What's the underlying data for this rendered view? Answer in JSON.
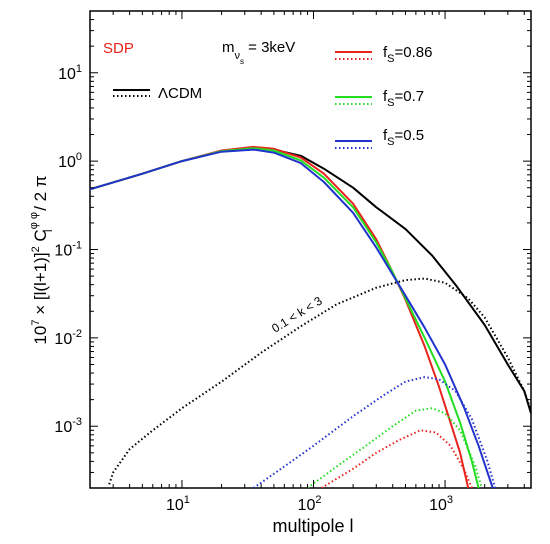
{
  "chart_data": {
    "type": "line",
    "xlabel": "multipole l",
    "ylabel": {
      "prefix": "10",
      "prefix_exp": "7",
      "main": " × [l(l+1)]",
      "sq": "2",
      "c": " C",
      "c_sup": "φ φ",
      "c_sub": "l",
      "suffix": " / 2 π"
    },
    "x_scale": "log",
    "y_scale": "log",
    "xlim": [
      2,
      4500
    ],
    "ylim": [
      0.0002,
      50
    ],
    "x_ticks": [
      {
        "value": 10,
        "base": "10",
        "exp": "1"
      },
      {
        "value": 100,
        "base": "10",
        "exp": "2"
      },
      {
        "value": 1000,
        "base": "10",
        "exp": "3"
      }
    ],
    "y_ticks": [
      {
        "value": 0.001,
        "base": "10",
        "exp": "-3"
      },
      {
        "value": 0.01,
        "base": "10",
        "exp": "-2"
      },
      {
        "value": 0.1,
        "base": "10",
        "exp": "-1"
      },
      {
        "value": 1,
        "base": "10",
        "exp": "0"
      },
      {
        "value": 10,
        "base": "10",
        "exp": "1"
      }
    ],
    "grid": false,
    "annotations": {
      "model": "SDP",
      "mass_m": "m",
      "mass_nu": "ν",
      "mass_s": "s",
      "mass_value": " = 3keV",
      "k_range": "0.1 < k < 3"
    },
    "legend_placement": "top",
    "series": [
      {
        "name": "ΛCDM",
        "label_parts": {
          "main": "ΛCDM"
        },
        "color": "#000000",
        "dash": "solid",
        "points": [
          [
            2,
            0.48
          ],
          [
            5,
            0.72
          ],
          [
            10,
            1.0
          ],
          [
            20,
            1.3
          ],
          [
            35,
            1.42
          ],
          [
            50,
            1.35
          ],
          [
            80,
            1.15
          ],
          [
            120,
            0.82
          ],
          [
            200,
            0.5
          ],
          [
            300,
            0.3
          ],
          [
            500,
            0.17
          ],
          [
            800,
            0.085
          ],
          [
            1200,
            0.04
          ],
          [
            2000,
            0.014
          ],
          [
            3000,
            0.005
          ],
          [
            4000,
            0.0025
          ],
          [
            4500,
            0.0014
          ]
        ]
      },
      {
        "name": "ΛCDM 0.1<k<3",
        "color": "#000000",
        "dash": "dotted",
        "points": [
          [
            2.8,
            0.00022
          ],
          [
            3,
            0.0003
          ],
          [
            4,
            0.00055
          ],
          [
            6,
            0.0009
          ],
          [
            10,
            0.0016
          ],
          [
            20,
            0.0032
          ],
          [
            40,
            0.0068
          ],
          [
            80,
            0.0135
          ],
          [
            150,
            0.024
          ],
          [
            300,
            0.037
          ],
          [
            500,
            0.045
          ],
          [
            700,
            0.047
          ],
          [
            1000,
            0.042
          ],
          [
            1500,
            0.028
          ],
          [
            2000,
            0.017
          ],
          [
            3000,
            0.006
          ],
          [
            4000,
            0.0025
          ],
          [
            4500,
            0.0015
          ]
        ]
      },
      {
        "name": "f_S=0.86",
        "label_parts": {
          "f": "f",
          "sub": "S",
          "val": "=0.86"
        },
        "color": "#e8231c",
        "dash": "solid",
        "points": [
          [
            2,
            0.48
          ],
          [
            5,
            0.72
          ],
          [
            10,
            1.0
          ],
          [
            20,
            1.32
          ],
          [
            35,
            1.45
          ],
          [
            50,
            1.38
          ],
          [
            80,
            1.1
          ],
          [
            120,
            0.72
          ],
          [
            200,
            0.33
          ],
          [
            300,
            0.13
          ],
          [
            400,
            0.055
          ],
          [
            500,
            0.027
          ],
          [
            700,
            0.008
          ],
          [
            900,
            0.0028
          ],
          [
            1100,
            0.0011
          ],
          [
            1300,
            0.0005
          ],
          [
            1500,
            0.0002
          ]
        ]
      },
      {
        "name": "f_S=0.86 0.1<k<3",
        "color": "#e8231c",
        "dash": "dotted",
        "points": [
          [
            115,
            0.0002
          ],
          [
            200,
            0.00033
          ],
          [
            300,
            0.0005
          ],
          [
            450,
            0.0007
          ],
          [
            650,
            0.0009
          ],
          [
            850,
            0.00085
          ],
          [
            1100,
            0.0006
          ],
          [
            1400,
            0.00032
          ],
          [
            1600,
            0.0002
          ]
        ]
      },
      {
        "name": "f_S=0.7",
        "label_parts": {
          "f": "f",
          "sub": "S",
          "val": "=0.7"
        },
        "color": "#22dd22",
        "dash": "solid",
        "points": [
          [
            2,
            0.48
          ],
          [
            5,
            0.72
          ],
          [
            10,
            1.0
          ],
          [
            20,
            1.3
          ],
          [
            35,
            1.4
          ],
          [
            50,
            1.32
          ],
          [
            80,
            1.02
          ],
          [
            120,
            0.65
          ],
          [
            200,
            0.3
          ],
          [
            300,
            0.12
          ],
          [
            400,
            0.055
          ],
          [
            500,
            0.028
          ],
          [
            700,
            0.01
          ],
          [
            1000,
            0.0032
          ],
          [
            1300,
            0.0011
          ],
          [
            1600,
            0.0004
          ],
          [
            1800,
            0.0002
          ]
        ]
      },
      {
        "name": "f_S=0.7 0.1<k<3",
        "color": "#22dd22",
        "dash": "dotted",
        "points": [
          [
            90,
            0.0002
          ],
          [
            150,
            0.00035
          ],
          [
            250,
            0.0006
          ],
          [
            400,
            0.001
          ],
          [
            600,
            0.0015
          ],
          [
            800,
            0.0016
          ],
          [
            1000,
            0.0014
          ],
          [
            1300,
            0.0009
          ],
          [
            1700,
            0.00035
          ],
          [
            1900,
            0.0002
          ]
        ]
      },
      {
        "name": "f_S=0.5",
        "label_parts": {
          "f": "f",
          "sub": "S",
          "val": "=0.5"
        },
        "color": "#2233cc",
        "dash": "solid",
        "points": [
          [
            2,
            0.48
          ],
          [
            5,
            0.72
          ],
          [
            10,
            1.0
          ],
          [
            20,
            1.28
          ],
          [
            35,
            1.35
          ],
          [
            50,
            1.25
          ],
          [
            80,
            0.95
          ],
          [
            120,
            0.58
          ],
          [
            200,
            0.26
          ],
          [
            300,
            0.105
          ],
          [
            400,
            0.052
          ],
          [
            500,
            0.03
          ],
          [
            700,
            0.013
          ],
          [
            1000,
            0.005
          ],
          [
            1400,
            0.0016
          ],
          [
            1800,
            0.0006
          ],
          [
            2300,
            0.0002
          ]
        ]
      },
      {
        "name": "f_S=0.5 0.1<k<3",
        "color": "#2233cc",
        "dash": "dotted",
        "points": [
          [
            35,
            0.0002
          ],
          [
            60,
            0.00035
          ],
          [
            100,
            0.0006
          ],
          [
            200,
            0.0013
          ],
          [
            350,
            0.0023
          ],
          [
            500,
            0.0032
          ],
          [
            700,
            0.0036
          ],
          [
            900,
            0.0034
          ],
          [
            1200,
            0.0025
          ],
          [
            1600,
            0.0012
          ],
          [
            2100,
            0.0004
          ],
          [
            2400,
            0.0002
          ]
        ]
      }
    ]
  }
}
